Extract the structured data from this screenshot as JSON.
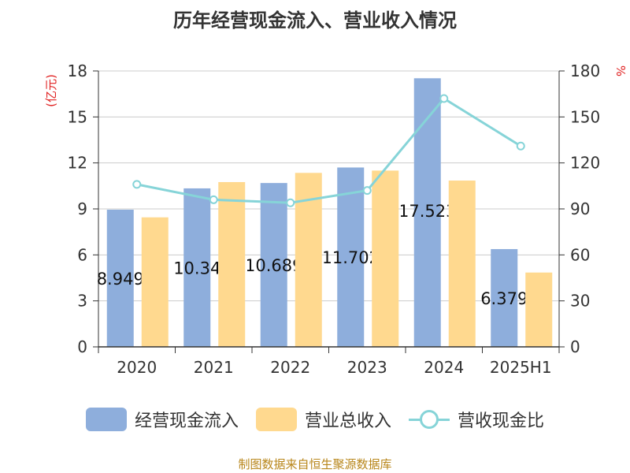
{
  "title": "历年经营现金流入、营业收入情况",
  "source": "制图数据来自恒生聚源数据库",
  "colors": {
    "cash_inflow": "#8eaedc",
    "revenue": "#ffd98f",
    "ratio": "#86d4d8",
    "axis_title": "#e02020",
    "text": "#333333",
    "grid": "#cccccc"
  },
  "legend": {
    "cash_inflow": "经营现金流入",
    "revenue": "营业总收入",
    "ratio": "营收现金比"
  },
  "chart_data": {
    "type": "bar",
    "title": "历年经营现金流入、营业收入情况",
    "categories": [
      "2020",
      "2021",
      "2022",
      "2023",
      "2024",
      "2025H1"
    ],
    "y_left": {
      "label": "(亿元)",
      "ylim": [
        0,
        18
      ],
      "ticks": [
        "0",
        "3",
        "6",
        "9",
        "12",
        "15",
        "18"
      ]
    },
    "y_right": {
      "label": "%",
      "ylim": [
        0,
        180
      ],
      "ticks": [
        "0",
        "30",
        "60",
        "90",
        "120",
        "150",
        "180"
      ]
    },
    "grid": true,
    "legend_position": "bottom",
    "series": [
      {
        "name": "经营现金流入",
        "type": "bar",
        "axis": "left",
        "values": [
          8.949,
          10.34,
          10.689,
          11.702,
          17.523,
          6.379
        ],
        "labels": [
          "8.949",
          "10.34",
          "10.689",
          "11.702",
          "17.523",
          "6.379"
        ]
      },
      {
        "name": "营业总收入",
        "type": "bar",
        "axis": "left",
        "values": [
          8.45,
          10.75,
          11.35,
          11.5,
          10.85,
          4.85
        ]
      },
      {
        "name": "营收现金比",
        "type": "line",
        "axis": "right",
        "values": [
          106,
          96,
          94,
          102,
          162,
          131
        ]
      }
    ]
  }
}
